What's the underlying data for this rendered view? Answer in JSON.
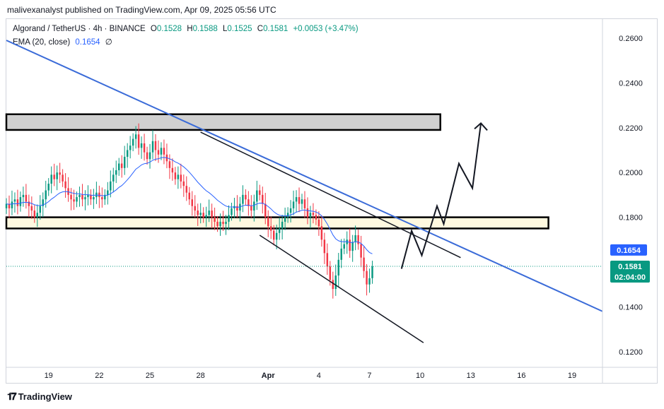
{
  "header": {
    "published_line": "malivexanalyst published on TradingView.com, Apr 09, 2025 05:56 UTC"
  },
  "legend": {
    "symbol": "Algorand / TetherUS · 4h · BINANCE",
    "open_label": "O",
    "open": "0.1528",
    "high_label": "H",
    "high": "0.1588",
    "low_label": "L",
    "low": "0.1525",
    "close_label": "C",
    "close": "0.1581",
    "change": "+0.0053 (+3.47%)",
    "ema_label": "EMA (20, close)",
    "ema_value": "0.1654",
    "ema_icon": "∅"
  },
  "price_badges": {
    "ema": "0.1654",
    "last": "0.1581",
    "countdown": "02:04:00",
    "ema_color": "#2962ff",
    "last_color": "#089981"
  },
  "colors": {
    "up": "#089981",
    "down": "#f23645",
    "ema": "#2962ff",
    "trendline": "#3a6bd8"
  },
  "footer": {
    "brand": "TradingView",
    "logo_icon": "tradingview-logo-icon"
  },
  "chart_data": {
    "type": "candlestick",
    "symbol": "ALGOUSDT",
    "timeframe": "4h",
    "y_ticks": [
      0.26,
      0.24,
      0.22,
      0.2,
      0.18,
      0.14,
      0.12
    ],
    "y_tick_labels": [
      "0.2600",
      "0.2400",
      "0.2200",
      "0.2000",
      "0.1800",
      "0.1400",
      "0.1200"
    ],
    "ylim": [
      0.113,
      0.2685
    ],
    "x_ticks": [
      19,
      22,
      25,
      28,
      32,
      35,
      38,
      41,
      44,
      47,
      50
    ],
    "x_tick_labels": [
      "19",
      "22",
      "25",
      "28",
      "Apr",
      "4",
      "7",
      "10",
      "13",
      "16",
      "19"
    ],
    "xlim": [
      16.5,
      51.8
    ],
    "closes": [
      0.186,
      0.184,
      0.187,
      0.188,
      0.185,
      0.189,
      0.19,
      0.187,
      0.185,
      0.183,
      0.18,
      0.182,
      0.185,
      0.188,
      0.192,
      0.195,
      0.199,
      0.197,
      0.2,
      0.199,
      0.196,
      0.193,
      0.19,
      0.188,
      0.187,
      0.189,
      0.19,
      0.188,
      0.189,
      0.19,
      0.188,
      0.189,
      0.191,
      0.189,
      0.188,
      0.19,
      0.192,
      0.196,
      0.199,
      0.201,
      0.204,
      0.202,
      0.207,
      0.21,
      0.212,
      0.215,
      0.217,
      0.211,
      0.213,
      0.209,
      0.206,
      0.209,
      0.214,
      0.21,
      0.208,
      0.211,
      0.208,
      0.205,
      0.202,
      0.2,
      0.197,
      0.199,
      0.196,
      0.194,
      0.191,
      0.188,
      0.185,
      0.183,
      0.181,
      0.182,
      0.18,
      0.181,
      0.183,
      0.18,
      0.178,
      0.176,
      0.178,
      0.177,
      0.178,
      0.181,
      0.184,
      0.185,
      0.183,
      0.186,
      0.19,
      0.188,
      0.185,
      0.183,
      0.187,
      0.192,
      0.19,
      0.186,
      0.18,
      0.176,
      0.174,
      0.17,
      0.173,
      0.175,
      0.178,
      0.18,
      0.182,
      0.184,
      0.187,
      0.189,
      0.186,
      0.188,
      0.184,
      0.18,
      0.182,
      0.181,
      0.179,
      0.176,
      0.17,
      0.164,
      0.158,
      0.152,
      0.148,
      0.154,
      0.161,
      0.166,
      0.168,
      0.17,
      0.165,
      0.169,
      0.172,
      0.168,
      0.162,
      0.156,
      0.15,
      0.1528,
      0.1581
    ],
    "x_start": 16.5,
    "x_step": 0.1667,
    "ema_period": 20,
    "zones": [
      {
        "name": "resistance-zone",
        "y1": 0.226,
        "y2": 0.219,
        "x1": 16.5,
        "x2": 42.2,
        "fill": "#d0d0d0"
      },
      {
        "name": "support-zone",
        "y1": 0.18,
        "y2": 0.175,
        "x1": 16.5,
        "x2": 48.6,
        "fill": "#fff9e0"
      }
    ],
    "trendlines": [
      {
        "name": "descending-trendline-blue",
        "color": "#3a6bd8",
        "width": 2,
        "points": [
          [
            16.5,
            0.259
          ],
          [
            51.8,
            0.138
          ]
        ]
      },
      {
        "name": "channel-upper-line",
        "color": "#131722",
        "width": 1.5,
        "points": [
          [
            28.0,
            0.218
          ],
          [
            43.4,
            0.162
          ]
        ]
      },
      {
        "name": "channel-lower-line",
        "color": "#131722",
        "width": 1.5,
        "points": [
          [
            31.5,
            0.172
          ],
          [
            41.2,
            0.124
          ]
        ]
      }
    ],
    "projection": {
      "name": "projected-path",
      "color": "#131722",
      "points": [
        [
          39.9,
          0.157
        ],
        [
          40.5,
          0.174
        ],
        [
          41.1,
          0.163
        ],
        [
          42.0,
          0.185
        ],
        [
          42.4,
          0.177
        ],
        [
          43.3,
          0.204
        ],
        [
          44.1,
          0.193
        ],
        [
          44.6,
          0.222
        ]
      ]
    },
    "current_price_line": 0.1581
  }
}
